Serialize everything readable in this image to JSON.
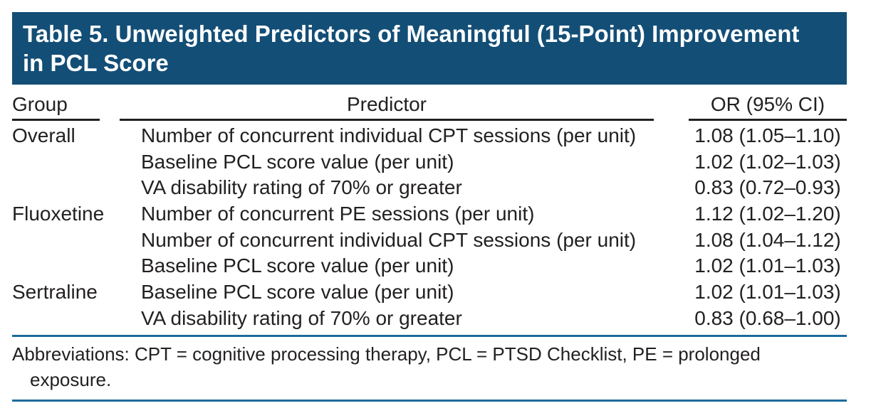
{
  "title": {
    "lines": [
      "Table 5. Unweighted Predictors of Meaningful (15-Point) Improvement",
      "in PCL Score"
    ]
  },
  "table": {
    "columns": [
      "Group",
      "Predictor",
      "OR (95% CI)"
    ],
    "rows": [
      {
        "group": "Overall",
        "predictor": "Number of concurrent individual CPT sessions (per unit)",
        "or": "1.08 (1.05–1.10)"
      },
      {
        "group": "",
        "predictor": "Baseline PCL score value (per unit)",
        "or": "1.02 (1.02–1.03)"
      },
      {
        "group": "",
        "predictor": "VA disability rating of 70% or greater",
        "or": "0.83 (0.72–0.93)"
      },
      {
        "group": "Fluoxetine",
        "predictor": "Number of concurrent PE sessions (per unit)",
        "or": "1.12 (1.02–1.20)"
      },
      {
        "group": "",
        "predictor": "Number of concurrent individual CPT sessions (per unit)",
        "or": "1.08 (1.04–1.12)"
      },
      {
        "group": "",
        "predictor": "Baseline PCL score value (per unit)",
        "or": "1.02 (1.01–1.03)"
      },
      {
        "group": "Sertraline",
        "predictor": "Baseline PCL score value (per unit)",
        "or": "1.02 (1.01–1.03)"
      },
      {
        "group": "",
        "predictor": "VA disability rating of 70% or greater",
        "or": "0.83 (0.68–1.00)"
      }
    ]
  },
  "footnote": {
    "lines": [
      "Abbreviations: CPT = cognitive processing therapy, PCL = PTSD Checklist, PE = prolonged",
      "exposure."
    ]
  },
  "colors": {
    "header_bg": "#134e76",
    "title_text": "#ffffff",
    "rule_dark": "#232021",
    "rule_blue": "#1c6b9c",
    "text": "#232021"
  }
}
